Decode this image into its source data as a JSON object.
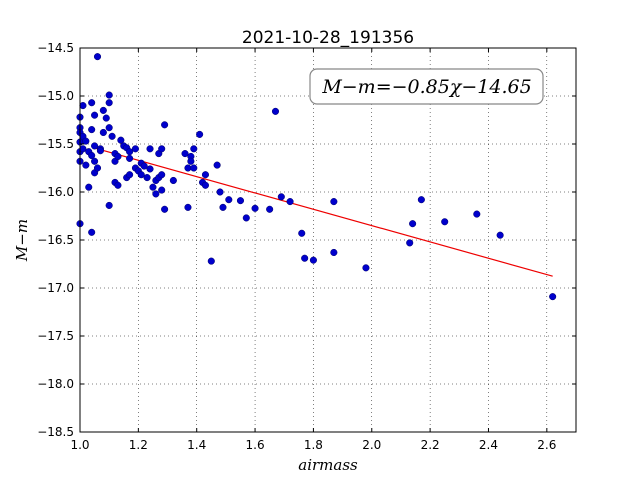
{
  "chart_data": {
    "type": "scatter",
    "title": "2021-10-28_191356",
    "xlabel": "airmass",
    "ylabel": "M−m",
    "xlim": [
      1.0,
      2.7
    ],
    "ylim": [
      -18.5,
      -14.5
    ],
    "y_inverted": true,
    "grid": true,
    "xticks": [
      1.0,
      1.2,
      1.4,
      1.6,
      1.8,
      2.0,
      2.2,
      2.4,
      2.6
    ],
    "xtick_labels": [
      "1.0",
      "1.2",
      "1.4",
      "1.6",
      "1.8",
      "2.0",
      "2.2",
      "2.4",
      "2.6"
    ],
    "yticks": [
      -14.5,
      -15.0,
      -15.5,
      -16.0,
      -16.5,
      -17.0,
      -17.5,
      -18.0,
      -18.5
    ],
    "ytick_labels": [
      "−14.5",
      "−15.0",
      "−15.5",
      "−16.0",
      "−16.5",
      "−17.0",
      "−17.5",
      "−18.0",
      "−18.5"
    ],
    "annotation": "M−m=−0.85χ−14.65",
    "annotation_placement": "top-right",
    "point_color": "#0000cc",
    "fit_color": "#ee0000",
    "fit": {
      "slope": -0.85,
      "intercept": -14.65,
      "x_range": [
        1.05,
        2.62
      ]
    },
    "points": [
      [
        1.0,
        -15.22
      ],
      [
        1.0,
        -15.33
      ],
      [
        1.0,
        -15.38
      ],
      [
        1.0,
        -15.48
      ],
      [
        1.0,
        -15.58
      ],
      [
        1.0,
        -15.68
      ],
      [
        1.0,
        -16.33
      ],
      [
        1.01,
        -15.1
      ],
      [
        1.01,
        -15.42
      ],
      [
        1.01,
        -15.55
      ],
      [
        1.02,
        -15.47
      ],
      [
        1.02,
        -15.72
      ],
      [
        1.03,
        -15.58
      ],
      [
        1.03,
        -15.95
      ],
      [
        1.04,
        -15.07
      ],
      [
        1.04,
        -15.35
      ],
      [
        1.04,
        -15.62
      ],
      [
        1.04,
        -16.42
      ],
      [
        1.05,
        -15.2
      ],
      [
        1.05,
        -15.52
      ],
      [
        1.05,
        -15.68
      ],
      [
        1.05,
        -15.8
      ],
      [
        1.06,
        -14.59
      ],
      [
        1.06,
        -15.75
      ],
      [
        1.07,
        -15.55
      ],
      [
        1.07,
        -15.57
      ],
      [
        1.08,
        -15.15
      ],
      [
        1.08,
        -15.38
      ],
      [
        1.09,
        -15.23
      ],
      [
        1.1,
        -14.99
      ],
      [
        1.1,
        -15.07
      ],
      [
        1.1,
        -15.33
      ],
      [
        1.1,
        -16.14
      ],
      [
        1.11,
        -15.42
      ],
      [
        1.12,
        -15.6
      ],
      [
        1.12,
        -15.68
      ],
      [
        1.12,
        -15.9
      ],
      [
        1.13,
        -15.63
      ],
      [
        1.13,
        -15.93
      ],
      [
        1.14,
        -15.46
      ],
      [
        1.15,
        -15.52
      ],
      [
        1.16,
        -15.54
      ],
      [
        1.16,
        -15.85
      ],
      [
        1.17,
        -15.58
      ],
      [
        1.17,
        -15.65
      ],
      [
        1.17,
        -15.82
      ],
      [
        1.19,
        -15.75
      ],
      [
        1.19,
        -15.55
      ],
      [
        1.2,
        -15.78
      ],
      [
        1.21,
        -15.7
      ],
      [
        1.21,
        -15.82
      ],
      [
        1.22,
        -15.73
      ],
      [
        1.23,
        -15.85
      ],
      [
        1.24,
        -15.55
      ],
      [
        1.24,
        -15.76
      ],
      [
        1.25,
        -15.95
      ],
      [
        1.26,
        -15.88
      ],
      [
        1.26,
        -16.02
      ],
      [
        1.27,
        -15.6
      ],
      [
        1.27,
        -15.85
      ],
      [
        1.28,
        -15.55
      ],
      [
        1.28,
        -15.98
      ],
      [
        1.28,
        -15.82
      ],
      [
        1.29,
        -15.3
      ],
      [
        1.29,
        -16.18
      ],
      [
        1.32,
        -15.88
      ],
      [
        1.36,
        -15.6
      ],
      [
        1.37,
        -15.75
      ],
      [
        1.37,
        -16.16
      ],
      [
        1.38,
        -15.63
      ],
      [
        1.38,
        -15.68
      ],
      [
        1.39,
        -15.55
      ],
      [
        1.39,
        -15.75
      ],
      [
        1.41,
        -15.4
      ],
      [
        1.42,
        -15.9
      ],
      [
        1.43,
        -15.93
      ],
      [
        1.43,
        -15.82
      ],
      [
        1.45,
        -16.72
      ],
      [
        1.47,
        -15.72
      ],
      [
        1.48,
        -16.0
      ],
      [
        1.49,
        -16.16
      ],
      [
        1.51,
        -16.08
      ],
      [
        1.55,
        -16.09
      ],
      [
        1.57,
        -16.27
      ],
      [
        1.6,
        -16.17
      ],
      [
        1.65,
        -16.18
      ],
      [
        1.67,
        -15.16
      ],
      [
        1.69,
        -16.05
      ],
      [
        1.72,
        -16.1
      ],
      [
        1.76,
        -16.43
      ],
      [
        1.77,
        -16.69
      ],
      [
        1.8,
        -16.71
      ],
      [
        1.87,
        -16.1
      ],
      [
        1.87,
        -16.63
      ],
      [
        1.98,
        -16.79
      ],
      [
        2.13,
        -16.53
      ],
      [
        2.14,
        -16.33
      ],
      [
        2.17,
        -16.08
      ],
      [
        2.25,
        -16.31
      ],
      [
        2.36,
        -16.23
      ],
      [
        2.44,
        -16.45
      ],
      [
        2.62,
        -17.09
      ]
    ]
  }
}
